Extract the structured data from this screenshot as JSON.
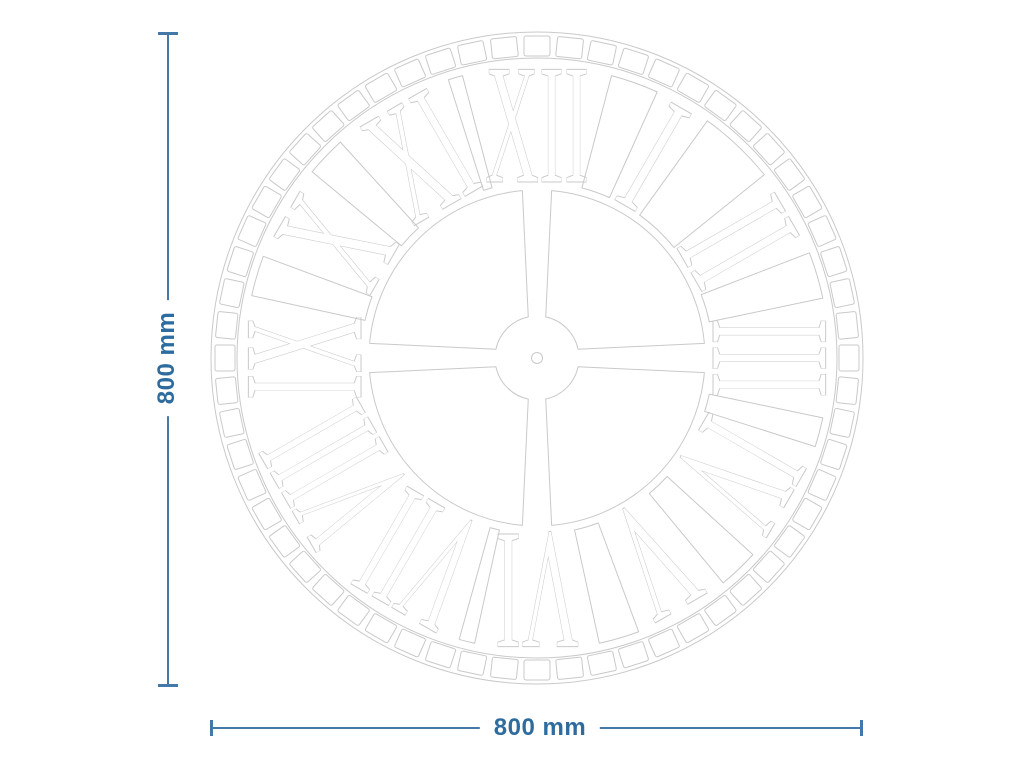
{
  "drawing": {
    "description": "Outline technical drawing of a round skeleton wall clock with Roman numerals",
    "outline_color": "#c9c9c9",
    "background_color": "#ffffff"
  },
  "dimensions": {
    "line_color": "#4478a8",
    "text_color": "#2e6b9e",
    "vertical_label": "800 mm",
    "horizontal_label": "800 mm"
  },
  "clock": {
    "minute_segment_count": 60,
    "numerals": [
      {
        "hour": 12,
        "label": "XII",
        "arc": 104
      },
      {
        "hour": 1,
        "label": "I",
        "arc": 30
      },
      {
        "hour": 2,
        "label": "II",
        "arc": 56
      },
      {
        "hour": 3,
        "label": "III",
        "arc": 80
      },
      {
        "hour": 4,
        "label": "IV",
        "arc": 84
      },
      {
        "hour": 5,
        "label": "V",
        "arc": 62
      },
      {
        "hour": 6,
        "label": "VI",
        "arc": 84
      },
      {
        "hour": 7,
        "label": "VII",
        "arc": 102
      },
      {
        "hour": 8,
        "label": "VIII",
        "arc": 118
      },
      {
        "hour": 9,
        "label": "IX",
        "arc": 84
      },
      {
        "hour": 10,
        "label": "X",
        "arc": 62
      },
      {
        "hour": 11,
        "label": "XI",
        "arc": 84
      }
    ]
  }
}
